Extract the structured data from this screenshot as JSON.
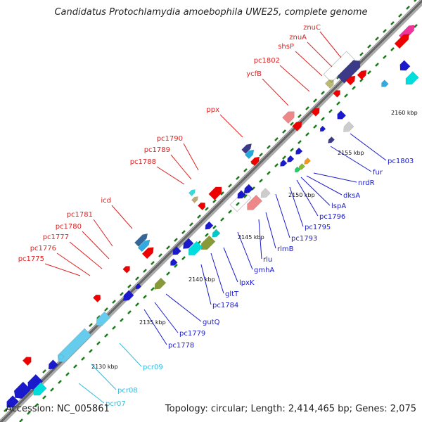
{
  "title": "Candidatus Protochlamydia amoebophila UWE25, complete genome",
  "accession": "Accession: NC_005861",
  "summary": "Topology: circular; Length: 2,414,465 bp; Genes: 2,075",
  "colors": {
    "backbone": "#666666",
    "tick": "#1a7a1a",
    "label_red": "#dd2222",
    "label_blue": "#1a1acc",
    "label_cyan": "#33bbdd"
  },
  "kbp_marks": [
    {
      "label": "2130 kbp"
    },
    {
      "label": "2135 kbp"
    },
    {
      "label": "2140 kbp"
    },
    {
      "label": "2145 kbp"
    },
    {
      "label": "2150 kbp"
    },
    {
      "label": "2155 kbp"
    },
    {
      "label": "2160 kbp"
    }
  ],
  "gene_labels_forward": [
    {
      "name": "znuC"
    },
    {
      "name": "znuA"
    },
    {
      "name": "shsP"
    },
    {
      "name": "pc1802"
    },
    {
      "name": "ycfB"
    },
    {
      "name": "ppx"
    },
    {
      "name": "pc1790"
    },
    {
      "name": "pc1789"
    },
    {
      "name": "pc1788"
    },
    {
      "name": "icd"
    },
    {
      "name": "pc1781"
    },
    {
      "name": "pc1780"
    },
    {
      "name": "pc1777"
    },
    {
      "name": "pc1776"
    },
    {
      "name": "pc1775"
    }
  ],
  "gene_labels_reverse": [
    {
      "name": "pc1803"
    },
    {
      "name": "fur"
    },
    {
      "name": "nrdR"
    },
    {
      "name": "dksA"
    },
    {
      "name": "lspA"
    },
    {
      "name": "pc1796"
    },
    {
      "name": "pc1795"
    },
    {
      "name": "pc1793"
    },
    {
      "name": "rlmB"
    },
    {
      "name": "rlu"
    },
    {
      "name": "gmhA"
    },
    {
      "name": "lpxK"
    },
    {
      "name": "gltT"
    },
    {
      "name": "pc1784"
    },
    {
      "name": "gutQ"
    },
    {
      "name": "pc1779"
    },
    {
      "name": "pc1778"
    }
  ],
  "gene_labels_rna": [
    {
      "name": "pcr09"
    },
    {
      "name": "pcr08"
    },
    {
      "name": "pcr07"
    }
  ]
}
